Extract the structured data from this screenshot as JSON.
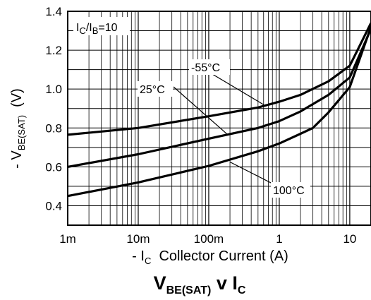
{
  "chart_data": {
    "type": "line",
    "title": {
      "main": "V",
      "main_sub": "BE(SAT)",
      "mid": " v I",
      "end_sub": "C"
    },
    "xlabel": {
      "prefix": "- I",
      "sub": "C",
      "rest": "  Collector Current (A)"
    },
    "ylabel": {
      "prefix": "- V",
      "sub": "BE(SAT)",
      "rest": "  (V)"
    },
    "x_scale": "log",
    "xlim": [
      0.001,
      20
    ],
    "ylim": [
      0.3,
      1.4
    ],
    "x_ticks": [
      {
        "value": 0.001,
        "label": "1m"
      },
      {
        "value": 0.01,
        "label": "10m"
      },
      {
        "value": 0.1,
        "label": "100m"
      },
      {
        "value": 1,
        "label": "1"
      },
      {
        "value": 10,
        "label": "10"
      }
    ],
    "y_ticks": [
      {
        "value": 0.4,
        "label": "0.4"
      },
      {
        "value": 0.6,
        "label": "0.6"
      },
      {
        "value": 0.8,
        "label": "0.8"
      },
      {
        "value": 1.0,
        "label": "1.0"
      },
      {
        "value": 1.2,
        "label": "1.2"
      },
      {
        "value": 1.4,
        "label": "1.4"
      }
    ],
    "grid": true,
    "condition": {
      "prefix": "I",
      "sub1": "C",
      "mid": "/I",
      "sub2": "B",
      "rest": "=10"
    },
    "series": [
      {
        "name": "-55°C",
        "x": [
          0.001,
          0.01,
          0.1,
          0.5,
          1,
          2,
          5,
          10,
          20
        ],
        "y": [
          0.765,
          0.8,
          0.86,
          0.905,
          0.935,
          0.97,
          1.04,
          1.12,
          1.34
        ]
      },
      {
        "name": "25°C",
        "x": [
          0.001,
          0.01,
          0.1,
          0.5,
          1,
          2,
          5,
          10,
          20
        ],
        "y": [
          0.6,
          0.665,
          0.745,
          0.8,
          0.835,
          0.885,
          0.97,
          1.06,
          1.31
        ]
      },
      {
        "name": "100°C",
        "x": [
          0.001,
          0.01,
          0.1,
          0.5,
          1,
          2,
          3,
          5,
          10,
          20
        ],
        "y": [
          0.45,
          0.52,
          0.605,
          0.68,
          0.72,
          0.77,
          0.8,
          0.88,
          1.01,
          1.32
        ]
      }
    ],
    "annotations": [
      {
        "text": "-55°C",
        "series": "-55°C",
        "point": [
          0.6,
          0.92
        ]
      },
      {
        "text": "25°C",
        "series": "25°C",
        "point": [
          0.18,
          0.77
        ]
      },
      {
        "text": "100°C",
        "series": "100°C",
        "point": [
          0.2,
          0.625
        ]
      }
    ]
  }
}
